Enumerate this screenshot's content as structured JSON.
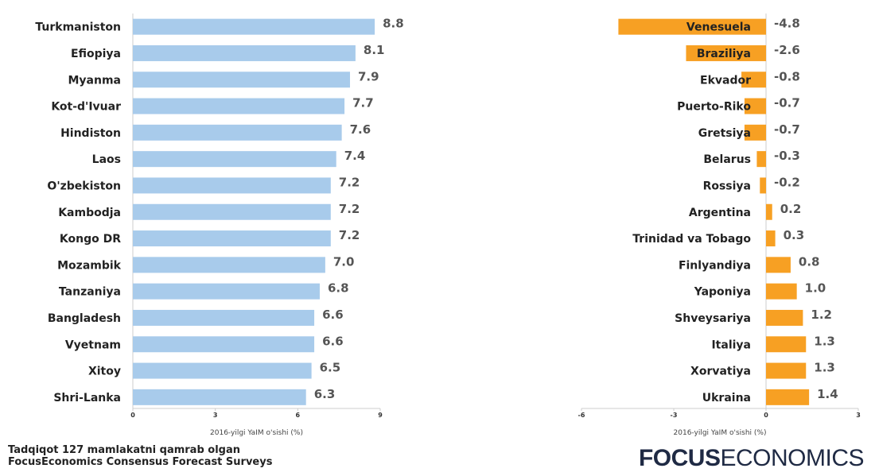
{
  "chart_data": [
    {
      "type": "bar",
      "orientation": "horizontal",
      "categories": [
        "Turkmaniston",
        "Efiopiya",
        "Myanma",
        "Kot-d'Ivuar",
        "Hindiston",
        "Laos",
        "O'zbekiston",
        "Kambodja",
        "Kongo DR",
        "Mozambik",
        "Tanzaniya",
        "Bangladesh",
        "Vyetnam",
        "Xitoy",
        "Shri-Lanka"
      ],
      "values": [
        8.8,
        8.1,
        7.9,
        7.7,
        7.6,
        7.4,
        7.2,
        7.2,
        7.2,
        7.0,
        6.8,
        6.6,
        6.6,
        6.5,
        6.3
      ],
      "value_labels": [
        "8.8",
        "8.1",
        "7.9",
        "7.7",
        "7.6",
        "7.4",
        "7.2",
        "7.2",
        "7.2",
        "7.0",
        "6.8",
        "6.6",
        "6.6",
        "6.5",
        "6.3"
      ],
      "xlabel": "2016-yilgi YaIM o'sishi (%)",
      "xlim": [
        0,
        9
      ],
      "xticks": [
        0,
        3,
        6,
        9
      ],
      "grid": false,
      "color": "#a8cbeb"
    },
    {
      "type": "bar",
      "orientation": "horizontal",
      "categories": [
        "Venesuela",
        "Braziliya",
        "Ekvador",
        "Puerto-Riko",
        "Gretsiya",
        "Belarus",
        "Rossiya",
        "Argentina",
        "Trinidad va Tobago",
        "Finlyandiya",
        "Yaponiya",
        "Shveysariya",
        "Italiya",
        "Xorvatiya",
        "Ukraina"
      ],
      "values": [
        -4.8,
        -2.6,
        -0.8,
        -0.7,
        -0.7,
        -0.3,
        -0.2,
        0.2,
        0.3,
        0.8,
        1.0,
        1.2,
        1.3,
        1.3,
        1.4
      ],
      "value_labels": [
        "-4.8",
        "-2.6",
        "-0.8",
        "-0.7",
        "-0.7",
        "-0.3",
        "-0.2",
        "0.2",
        "0.3",
        "0.8",
        "1.0",
        "1.2",
        "1.3",
        "1.3",
        "1.4"
      ],
      "xlabel": "2016-yilgi YaIM o'sishi (%)",
      "xlim": [
        -6,
        3
      ],
      "xticks": [
        -6,
        -3,
        0,
        3
      ],
      "grid": false,
      "color": "#f7a023"
    }
  ],
  "footer": {
    "note_line1": "Tadqiqot 127 mamlakatni qamrab olgan",
    "note_line2": "FocusEconomics Consensus Forecast Surveys",
    "brand_bold": "FOCUS",
    "brand_light": "ECONOMICS"
  },
  "colors": {
    "axis": "#cccccc",
    "brand": "#1f2a44"
  }
}
